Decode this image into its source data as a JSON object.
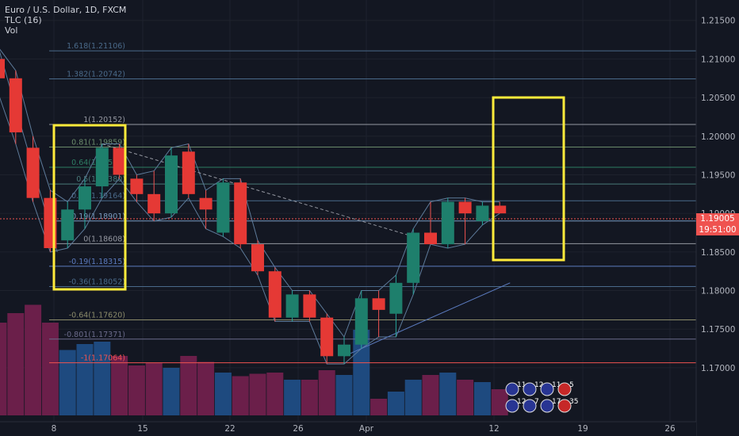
{
  "legend": {
    "symbol": "Euro / U.S. Dollar, 1D, FXCM",
    "indicator_1": "TLC (16)",
    "indicator_2": "Vol"
  },
  "price_label": {
    "value": "1.19005",
    "time": "19:51:00"
  },
  "colors": {
    "background": "#131722",
    "bull": "#26a69a",
    "bear": "#ef5350",
    "highlight": "#ffeb3b",
    "vol_bull": "#1e4a7f",
    "vol_bear": "#6b1f4a"
  },
  "chart_data": {
    "type": "candlestick",
    "ylim": [
      1.1665,
      1.216
    ],
    "y_ticks": [
      "1.21500",
      "1.21000",
      "1.20500",
      "1.20000",
      "1.19500",
      "1.19000",
      "1.18500",
      "1.18000",
      "1.17500",
      "1.17000"
    ],
    "x_ticks": [
      "8",
      "15",
      "22",
      "26",
      "Apr",
      "12",
      "19",
      "26"
    ],
    "candles": [
      {
        "o": 1.21,
        "h": 1.2115,
        "l": 1.2055,
        "c": 1.2075
      },
      {
        "o": 1.2075,
        "h": 1.2085,
        "l": 1.199,
        "c": 1.2005
      },
      {
        "o": 1.1985,
        "h": 1.2,
        "l": 1.1915,
        "c": 1.192
      },
      {
        "o": 1.192,
        "h": 1.193,
        "l": 1.185,
        "c": 1.1855
      },
      {
        "o": 1.1865,
        "h": 1.1915,
        "l": 1.1855,
        "c": 1.1905
      },
      {
        "o": 1.1905,
        "h": 1.1945,
        "l": 1.188,
        "c": 1.1935
      },
      {
        "o": 1.1935,
        "h": 1.199,
        "l": 1.192,
        "c": 1.1985
      },
      {
        "o": 1.1985,
        "h": 1.199,
        "l": 1.1945,
        "c": 1.195
      },
      {
        "o": 1.1945,
        "h": 1.195,
        "l": 1.1915,
        "c": 1.1925
      },
      {
        "o": 1.1925,
        "h": 1.1955,
        "l": 1.189,
        "c": 1.19
      },
      {
        "o": 1.19,
        "h": 1.1985,
        "l": 1.1895,
        "c": 1.1975
      },
      {
        "o": 1.198,
        "h": 1.199,
        "l": 1.192,
        "c": 1.1925
      },
      {
        "o": 1.192,
        "h": 1.193,
        "l": 1.188,
        "c": 1.1905
      },
      {
        "o": 1.1875,
        "h": 1.1945,
        "l": 1.187,
        "c": 1.194
      },
      {
        "o": 1.194,
        "h": 1.1945,
        "l": 1.1855,
        "c": 1.186
      },
      {
        "o": 1.186,
        "h": 1.1865,
        "l": 1.182,
        "c": 1.1825
      },
      {
        "o": 1.1825,
        "h": 1.183,
        "l": 1.176,
        "c": 1.1765
      },
      {
        "o": 1.1765,
        "h": 1.18,
        "l": 1.176,
        "c": 1.1795
      },
      {
        "o": 1.1795,
        "h": 1.18,
        "l": 1.176,
        "c": 1.1765
      },
      {
        "o": 1.1765,
        "h": 1.177,
        "l": 1.1705,
        "c": 1.1715
      },
      {
        "o": 1.1715,
        "h": 1.174,
        "l": 1.1705,
        "c": 1.173
      },
      {
        "o": 1.173,
        "h": 1.18,
        "l": 1.1725,
        "c": 1.179
      },
      {
        "o": 1.179,
        "h": 1.18,
        "l": 1.174,
        "c": 1.1775
      },
      {
        "o": 1.177,
        "h": 1.182,
        "l": 1.174,
        "c": 1.181
      },
      {
        "o": 1.181,
        "h": 1.188,
        "l": 1.1795,
        "c": 1.1875
      },
      {
        "o": 1.1875,
        "h": 1.1915,
        "l": 1.186,
        "c": 1.186
      },
      {
        "o": 1.186,
        "h": 1.192,
        "l": 1.1855,
        "c": 1.1915
      },
      {
        "o": 1.1915,
        "h": 1.192,
        "l": 1.186,
        "c": 1.19
      },
      {
        "o": 1.189,
        "h": 1.1915,
        "l": 1.1885,
        "c": 1.191
      },
      {
        "o": 1.191,
        "h": 1.1915,
        "l": 1.19,
        "c": 1.19
      }
    ],
    "volumes": [
      {
        "v": 0.78,
        "dir": "bear"
      },
      {
        "v": 0.86,
        "dir": "bear"
      },
      {
        "v": 0.93,
        "dir": "bear"
      },
      {
        "v": 0.78,
        "dir": "bear"
      },
      {
        "v": 0.55,
        "dir": "bull"
      },
      {
        "v": 0.6,
        "dir": "bull"
      },
      {
        "v": 0.62,
        "dir": "bull"
      },
      {
        "v": 0.5,
        "dir": "bear"
      },
      {
        "v": 0.42,
        "dir": "bear"
      },
      {
        "v": 0.44,
        "dir": "bear"
      },
      {
        "v": 0.4,
        "dir": "bull"
      },
      {
        "v": 0.5,
        "dir": "bear"
      },
      {
        "v": 0.45,
        "dir": "bear"
      },
      {
        "v": 0.36,
        "dir": "bull"
      },
      {
        "v": 0.33,
        "dir": "bear"
      },
      {
        "v": 0.35,
        "dir": "bear"
      },
      {
        "v": 0.36,
        "dir": "bear"
      },
      {
        "v": 0.3,
        "dir": "bull"
      },
      {
        "v": 0.3,
        "dir": "bear"
      },
      {
        "v": 0.38,
        "dir": "bear"
      },
      {
        "v": 0.34,
        "dir": "bull"
      },
      {
        "v": 0.72,
        "dir": "bull"
      },
      {
        "v": 0.14,
        "dir": "bear"
      },
      {
        "v": 0.2,
        "dir": "bull"
      },
      {
        "v": 0.3,
        "dir": "bull"
      },
      {
        "v": 0.34,
        "dir": "bear"
      },
      {
        "v": 0.36,
        "dir": "bull"
      },
      {
        "v": 0.3,
        "dir": "bear"
      },
      {
        "v": 0.28,
        "dir": "bull"
      },
      {
        "v": 0.22,
        "dir": "bear"
      }
    ],
    "fib_levels": [
      {
        "label": "1.618(1.21106)",
        "price": 1.21106,
        "color": "#4a6a8a"
      },
      {
        "label": "1.382(1.20742)",
        "price": 1.20742,
        "color": "#4a6a8a"
      },
      {
        "label": "1(1.20152)",
        "price": 1.20152,
        "color": "#9598a1"
      },
      {
        "label": "0.81(1.19859)",
        "price": 1.19859,
        "color": "#6a8a6a"
      },
      {
        "label": "0.64(1.19597)",
        "price": 1.19597,
        "color": "#2e7d63"
      },
      {
        "label": "0.5(1.19380)",
        "price": 1.1938,
        "color": "#4a7a7a"
      },
      {
        "label": "0.36(1.19164)",
        "price": 1.19164,
        "color": "#4a6a8a"
      },
      {
        "label": "0.19(1.18901)",
        "price": 1.18901,
        "color": "#7a9abf"
      },
      {
        "label": "0(1.18608)",
        "price": 1.18608,
        "color": "#9598a1"
      },
      {
        "label": "-0.19(1.18315)",
        "price": 1.18315,
        "color": "#5b7bbf"
      },
      {
        "label": "-0.36(1.18052)",
        "price": 1.18052,
        "color": "#4a6a8a"
      },
      {
        "label": "-0.64(1.17620)",
        "price": 1.1762,
        "color": "#8a8a6a"
      },
      {
        "label": "-0.801(1.17371)",
        "price": 1.17371,
        "color": "#6a6a8a"
      },
      {
        "label": "-1(1.17064)",
        "price": 1.17064,
        "color": "#ef5350"
      }
    ],
    "event_badges": [
      "11",
      "12",
      "11",
      "5",
      "12",
      "7",
      "17",
      "35"
    ]
  }
}
